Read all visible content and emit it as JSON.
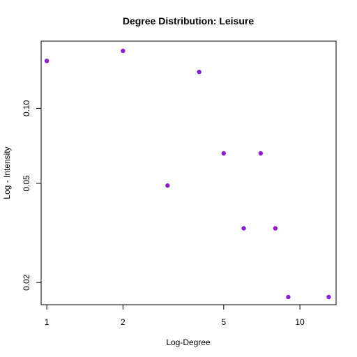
{
  "chart_data": {
    "type": "scatter",
    "title": "Degree Distribution: Leisure",
    "xlabel": "Log-Degree",
    "ylabel": "Log - Intensity",
    "x_scale": "log",
    "y_scale": "log",
    "xlim": [
      0.95,
      13.9
    ],
    "ylim": [
      0.0163,
      0.186
    ],
    "x_ticks": [
      {
        "value": 1,
        "label": "1"
      },
      {
        "value": 2,
        "label": "2"
      },
      {
        "value": 5,
        "label": "5"
      },
      {
        "value": 10,
        "label": "10"
      }
    ],
    "y_ticks": [
      {
        "value": 0.02,
        "label": "0.02"
      },
      {
        "value": 0.05,
        "label": "0.05"
      },
      {
        "value": 0.1,
        "label": "0.10"
      }
    ],
    "grid": false,
    "point_color": "#8B1FD6",
    "points": [
      {
        "x": 1,
        "y": 0.155
      },
      {
        "x": 2,
        "y": 0.17
      },
      {
        "x": 3,
        "y": 0.049
      },
      {
        "x": 4,
        "y": 0.14
      },
      {
        "x": 5,
        "y": 0.066
      },
      {
        "x": 6,
        "y": 0.033
      },
      {
        "x": 7,
        "y": 0.066
      },
      {
        "x": 8,
        "y": 0.033
      },
      {
        "x": 9,
        "y": 0.0175
      },
      {
        "x": 13,
        "y": 0.0175
      }
    ]
  }
}
